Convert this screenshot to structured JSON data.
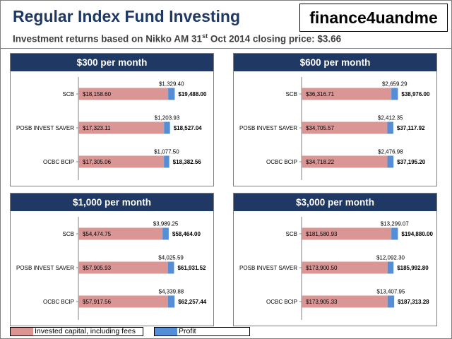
{
  "header": {
    "title": "Regular Index Fund Investing",
    "brand": "finance4uandme",
    "subtitle_pre": "Investment returns based on Nikko AM 31",
    "subtitle_sup": "st",
    "subtitle_post": " Oct 2014 closing price: $3.66"
  },
  "legend": {
    "invested_label": "Invested  capital, including fees",
    "profit_label": "Profit"
  },
  "colors": {
    "header_bg": "#1f3864",
    "invested": "#d99694",
    "profit": "#558ed5"
  },
  "chart_data": [
    {
      "type": "bar",
      "orientation": "horizontal",
      "stacked": true,
      "title": "$300 per month",
      "categories": [
        "SCB",
        "POSB INVEST SAVER",
        "OCBC BCIP"
      ],
      "series": [
        {
          "name": "Invested  capital, including fees",
          "values": [
            18158.6,
            17323.11,
            17305.06
          ],
          "labels": [
            "$18,158.60",
            "$17,323.11",
            "$17,305.06"
          ]
        },
        {
          "name": "Profit",
          "values": [
            1329.4,
            1203.93,
            1077.5
          ],
          "labels": [
            "$1,329.40",
            "$1,203.93",
            "$1,077.50"
          ]
        }
      ],
      "totals": [
        "$19,488.00",
        "$18,527.04",
        "$18,382.56"
      ],
      "xlim": [
        0,
        20000
      ]
    },
    {
      "type": "bar",
      "orientation": "horizontal",
      "stacked": true,
      "title": "$600 per month",
      "categories": [
        "SCB",
        "POSB INVEST SAVER",
        "OCBC BCIP"
      ],
      "series": [
        {
          "name": "Invested  capital, including fees",
          "values": [
            36316.71,
            34705.57,
            34718.22
          ],
          "labels": [
            "$36,316.71",
            "$34,705.57",
            "$34,718.22"
          ]
        },
        {
          "name": "Profit",
          "values": [
            2659.29,
            2412.35,
            2476.98
          ],
          "labels": [
            "$2,659.29",
            "$2,412.35",
            "$2,476.98"
          ]
        }
      ],
      "totals": [
        "$38,976.00",
        "$37,117.92",
        "$37,195.20"
      ],
      "xlim": [
        0,
        40000
      ]
    },
    {
      "type": "bar",
      "orientation": "horizontal",
      "stacked": true,
      "title": "$1,000 per month",
      "categories": [
        "SCB",
        "POSB INVEST SAVER",
        "OCBC BCIP"
      ],
      "series": [
        {
          "name": "Invested  capital, including fees",
          "values": [
            54474.75,
            57905.93,
            57917.56
          ],
          "labels": [
            "$54,474.75",
            "$57,905.93",
            "$57,917.56"
          ]
        },
        {
          "name": "Profit",
          "values": [
            3989.25,
            4025.59,
            4339.88
          ],
          "labels": [
            "$3,989.25",
            "$4,025.59",
            "$4,339.88"
          ]
        }
      ],
      "totals": [
        "$58,464.00",
        "$61,931.52",
        "$62,257.44"
      ],
      "xlim": [
        0,
        64000
      ]
    },
    {
      "type": "bar",
      "orientation": "horizontal",
      "stacked": true,
      "title": "$3,000 per month",
      "categories": [
        "SCB",
        "POSB INVEST SAVER",
        "OCBC BCIP"
      ],
      "series": [
        {
          "name": "Invested  capital, including fees",
          "values": [
            181580.93,
            173900.5,
            173905.33
          ],
          "labels": [
            "$181,580.93",
            "$173,900.50",
            "$173,905.33"
          ]
        },
        {
          "name": "Profit",
          "values": [
            13299.07,
            12092.3,
            13407.95
          ],
          "labels": [
            "$13,299.07",
            "$12,092.30",
            "$13,407.95"
          ]
        }
      ],
      "totals": [
        "$194,880.00",
        "$185,992.80",
        "$187,313.28"
      ],
      "xlim": [
        0,
        200000
      ]
    }
  ]
}
